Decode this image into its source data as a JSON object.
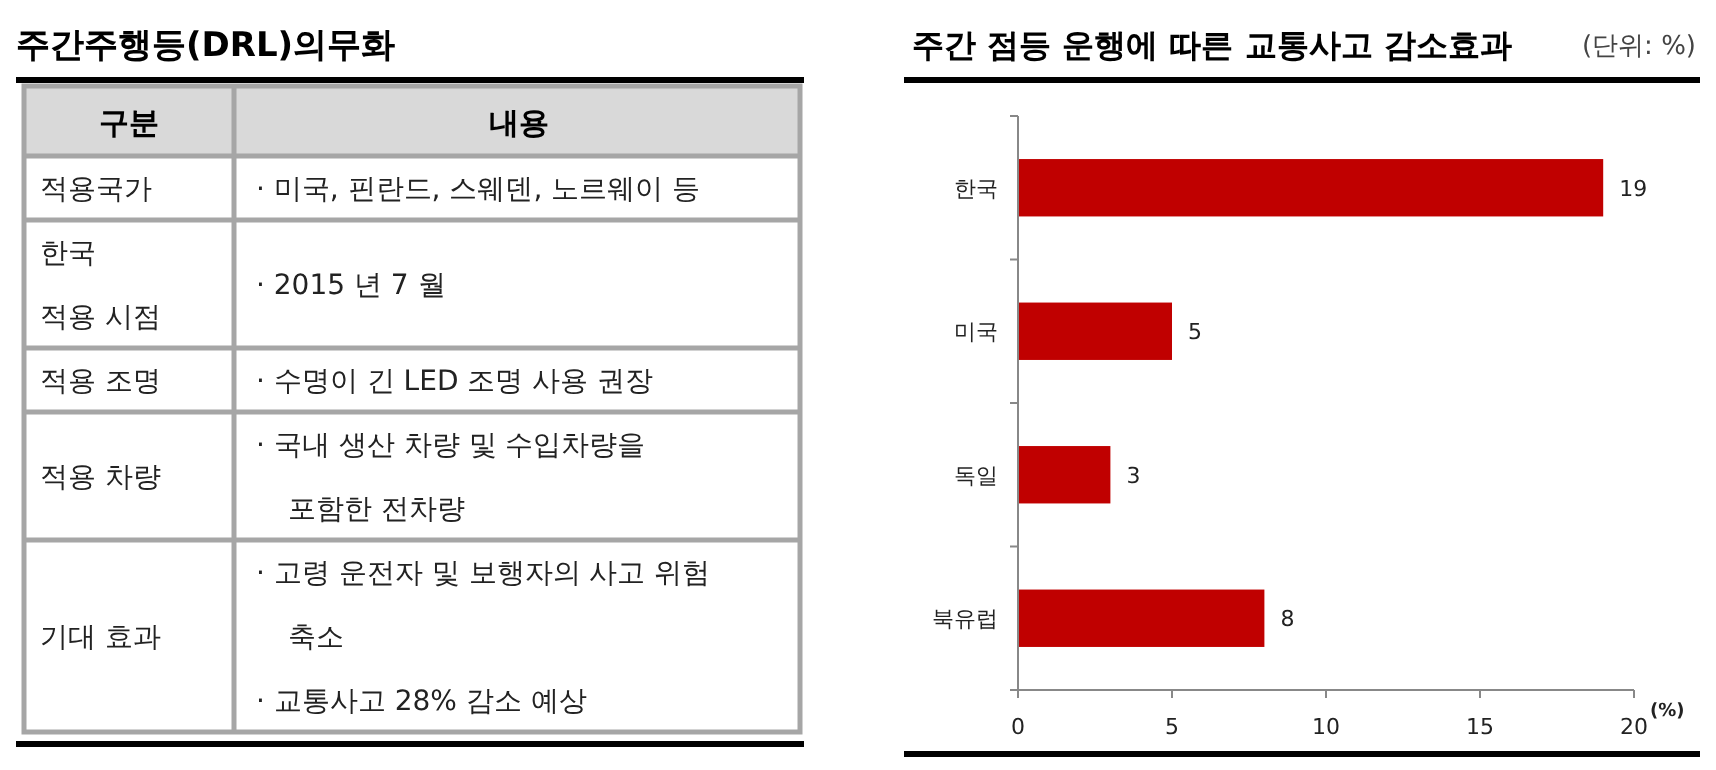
{
  "chart_data": [
    {
      "type": "other",
      "title": "주간주행등(DRL)의무화",
      "annotations": [
        "구분",
        "내용",
        "적용국가",
        "· 미국, 핀란드, 스웨덴, 노르웨이 등",
        "한국",
        "적용 시점",
        "· 2015 년 7 월",
        "적용 조명",
        "· 수명이 긴 LED 조명 사용 권장",
        "적용 차량",
        "·  국내 생산 차량 및 수입차량을",
        "포함한 전차량",
        "기대 효과",
        "· 고령 운전자 및 보행자의 사고 위험",
        "축소",
        "·  교통사고 28% 감소 예상"
      ]
    },
    {
      "type": "bar",
      "orientation": "horizontal",
      "title": "주간 점등 운행에 따른 교통사고 감소효과",
      "annotations": [
        "(단위: %)"
      ],
      "xlabel": "(%)",
      "categories": [
        "한국",
        "미국",
        "독일",
        "북유럽"
      ],
      "values": [
        19,
        5,
        3,
        8
      ],
      "color": "#c00000",
      "xlim": [
        0,
        20
      ],
      "xticks": [
        0,
        5,
        10,
        15,
        20
      ],
      "data_labels": true
    }
  ]
}
